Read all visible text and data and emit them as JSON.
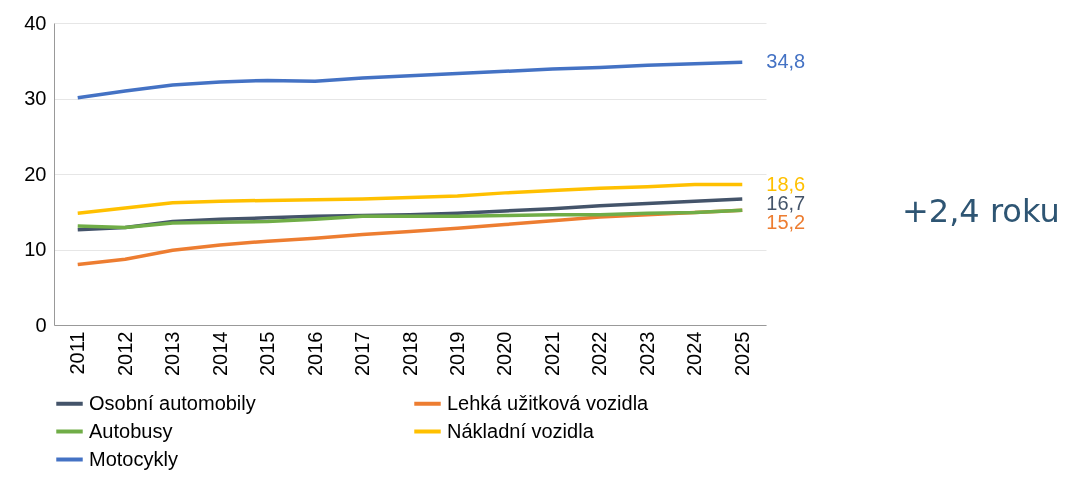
{
  "chart_data": {
    "type": "line",
    "categories": [
      "2011",
      "2012",
      "2013",
      "2014",
      "2015",
      "2016",
      "2017",
      "2018",
      "2019",
      "2020",
      "2021",
      "2022",
      "2023",
      "2024",
      "2025"
    ],
    "series": [
      {
        "name": "Osobní automobily",
        "color": "#44546a",
        "values": [
          12.6,
          12.9,
          13.7,
          14.0,
          14.2,
          14.4,
          14.5,
          14.6,
          14.8,
          15.1,
          15.4,
          15.8,
          16.1,
          16.4,
          16.7
        ],
        "value_labels": [
          null,
          null,
          null,
          null,
          null,
          null,
          null,
          null,
          null,
          null,
          null,
          null,
          null,
          null,
          "16,7"
        ]
      },
      {
        "name": "Lehká užitková vozidla",
        "color": "#ed7d31",
        "values": [
          8.0,
          8.7,
          9.9,
          10.6,
          11.1,
          11.5,
          12.0,
          12.4,
          12.8,
          13.3,
          13.8,
          14.3,
          14.6,
          14.9,
          15.2
        ],
        "value_labels": [
          null,
          null,
          null,
          null,
          null,
          null,
          null,
          null,
          null,
          null,
          null,
          null,
          null,
          null,
          "15,2"
        ]
      },
      {
        "name": "Autobusy",
        "color": "#70ad47",
        "values": [
          13.1,
          12.9,
          13.5,
          13.6,
          13.7,
          14.0,
          14.4,
          14.4,
          14.4,
          14.5,
          14.6,
          14.6,
          14.8,
          14.9,
          15.2
        ]
      },
      {
        "name": "Nákladní vozidla",
        "color": "#ffc000",
        "values": [
          14.8,
          15.5,
          16.2,
          16.4,
          16.5,
          16.6,
          16.7,
          16.9,
          17.1,
          17.5,
          17.8,
          18.1,
          18.3,
          18.6,
          18.6
        ],
        "value_labels": [
          null,
          null,
          null,
          null,
          null,
          null,
          null,
          null,
          null,
          null,
          null,
          null,
          null,
          null,
          "18,6"
        ]
      },
      {
        "name": "Motocykly",
        "color": "#4472c4",
        "values": [
          30.1,
          31.0,
          31.8,
          32.2,
          32.4,
          32.3,
          32.7,
          33.0,
          33.3,
          33.6,
          33.9,
          34.1,
          34.4,
          34.6,
          34.8
        ],
        "value_labels": [
          null,
          null,
          null,
          null,
          null,
          null,
          null,
          null,
          null,
          null,
          null,
          null,
          null,
          null,
          "34,8"
        ]
      }
    ],
    "ylim": [
      0,
      40
    ],
    "yticks": [
      0,
      10,
      20,
      30,
      40
    ],
    "grid": "y",
    "legend": "bottom",
    "marker": "none",
    "line_style": "solid",
    "annotations": [
      "+2,4 roku"
    ]
  }
}
